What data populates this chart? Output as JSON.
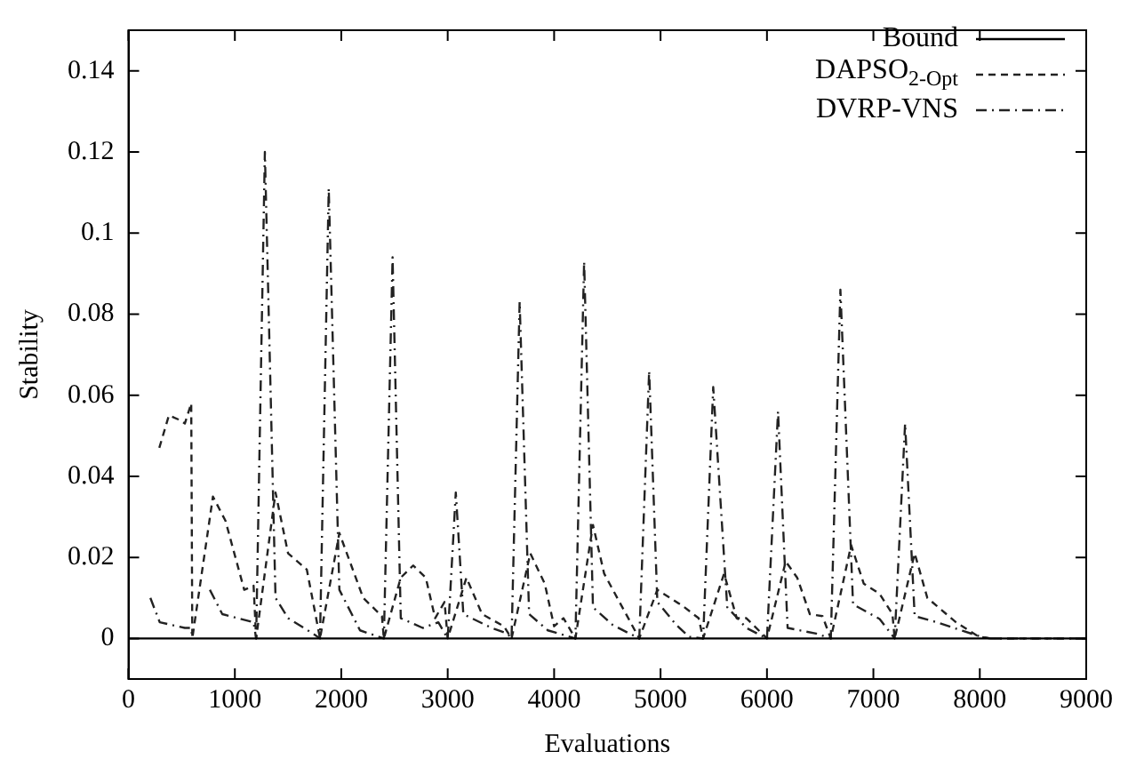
{
  "chart_data": {
    "type": "line",
    "xlabel": "Evaluations",
    "ylabel": "Stability",
    "xlim": [
      0,
      9000
    ],
    "xticks": [
      0,
      1000,
      2000,
      3000,
      4000,
      5000,
      6000,
      7000,
      8000,
      9000
    ],
    "ylim": [
      -0.01,
      0.15
    ],
    "yticks": [
      0,
      0.02,
      0.04,
      0.06,
      0.08,
      0.1,
      0.12,
      0.14
    ],
    "grid": false,
    "legend": "top right",
    "marker": "none",
    "series": [
      {
        "name": "Bound",
        "color": "#000000",
        "line_style": "solid",
        "x": [
          0,
          9000
        ],
        "values": [
          0,
          0
        ]
      },
      {
        "name": "DAPSO$_{2-Opt}$",
        "color": "#222222",
        "line_style": "dashed",
        "x": [
          290,
          380,
          470,
          530,
          590,
          600,
          794,
          912,
          1088,
          1176,
          1200,
          1382,
          1500,
          1676,
          1735,
          1800,
          1982,
          2206,
          2382,
          2400,
          2559,
          2676,
          2794,
          2882,
          2970,
          3000,
          3176,
          3323,
          3529,
          3600,
          3776,
          3912,
          4000,
          4088,
          4200,
          4365,
          4470,
          4552,
          4800,
          4970,
          5090,
          5209,
          5358,
          5400,
          5597,
          5716,
          5806,
          6000,
          6176,
          6284,
          6403,
          6522,
          6600,
          6791,
          6910,
          7059,
          7179,
          7200,
          7388,
          7507,
          7597,
          7776,
          7985,
          8100,
          9000
        ],
        "values": [
          0.047,
          0.055,
          0.054,
          0.053,
          0.058,
          0,
          0.035,
          0.029,
          0.012,
          0.013,
          0,
          0.036,
          0.021,
          0.017,
          0.009,
          0,
          0.026,
          0.01,
          0.0055,
          0,
          0.015,
          0.018,
          0.015,
          0.005,
          0.009,
          0,
          0.015,
          0.006,
          0.003,
          0,
          0.021,
          0.0135,
          0.003,
          0.005,
          0,
          0.028,
          0.016,
          0.012,
          0,
          0.012,
          0.01,
          0.008,
          0.005,
          0,
          0.016,
          0.005,
          0.005,
          0,
          0.019,
          0.015,
          0.006,
          0.0055,
          0,
          0.023,
          0.0135,
          0.011,
          0.006,
          0,
          0.021,
          0.01,
          0.008,
          0.004,
          0.0005,
          0,
          0
        ]
      },
      {
        "name": "DVRP-VNS",
        "color": "#222222",
        "line_style": "dashdot",
        "x": [
          206,
          294,
          530,
          590,
          600,
          694,
          765,
          882,
          1176,
          1200,
          1282,
          1382,
          1500,
          1735,
          1800,
          1882,
          1982,
          2176,
          2400,
          2482,
          2559,
          2765,
          2912,
          3000,
          3076,
          3147,
          3412,
          3560,
          3600,
          3676,
          3765,
          3941,
          4200,
          4282,
          4365,
          4552,
          4800,
          4893,
          4970,
          5149,
          5269,
          5400,
          5495,
          5627,
          5806,
          6000,
          6104,
          6194,
          6463,
          6600,
          6690,
          6809,
          7059,
          7200,
          7298,
          7388,
          7597,
          7836,
          8015,
          8100,
          9000
        ],
        "values": [
          0.01,
          0.004,
          0.0026,
          0.0026,
          0,
          null,
          0.012,
          0.006,
          0.004,
          0,
          0.12,
          0.01,
          0.005,
          0.0012,
          0,
          0.111,
          0.012,
          0.002,
          0,
          0.094,
          0.005,
          0.0026,
          0.004,
          0,
          0.036,
          0.006,
          0.0026,
          0.0012,
          0,
          0.083,
          0.006,
          0.002,
          0,
          0.093,
          0.0077,
          0.0033,
          0,
          0.066,
          0.009,
          0.0033,
          0.0004,
          0,
          0.062,
          0.0077,
          0.0026,
          0,
          0.056,
          0.0026,
          0.0012,
          0,
          0.086,
          0.0084,
          0.0048,
          0,
          0.053,
          0.0055,
          0.004,
          0.0019,
          0.0004,
          0,
          0
        ]
      }
    ]
  }
}
